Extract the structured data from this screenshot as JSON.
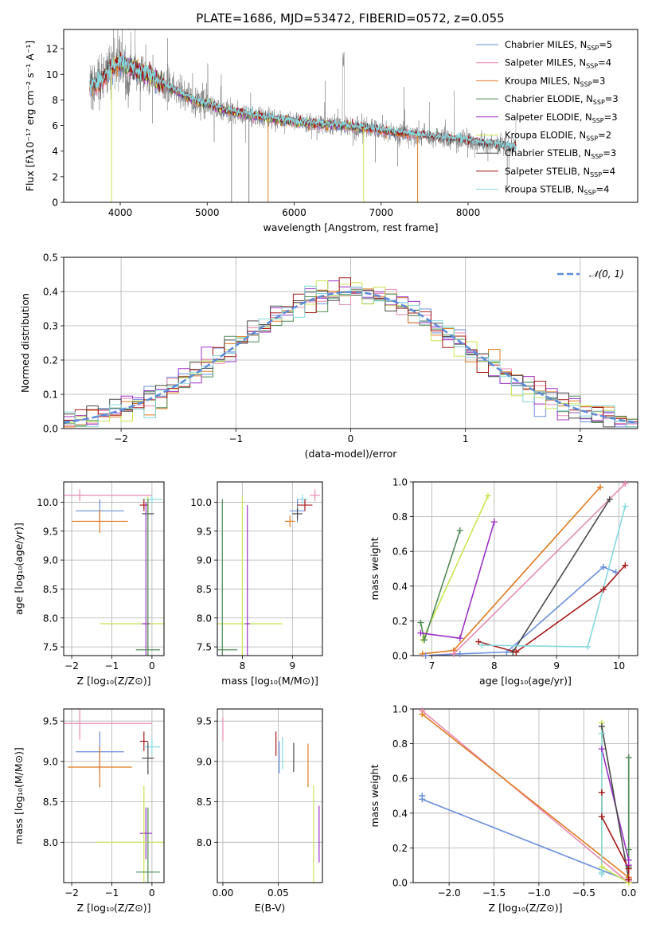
{
  "title": "PLATE=1686, MJD=53472, FIBERID=0572, z=0.055",
  "colors": {
    "Chabrier MILES": "#6a8fdb",
    "Salpeter MILES": "#e98ab5",
    "Kroupa MILES": "#e07a1f",
    "Chabrier ELODIE": "#4f8a55",
    "Salpeter ELODIE": "#9b33c7",
    "Kroupa ELODIE": "#c8e651",
    "Chabrier STELIB": "#4a4a4a",
    "Salpeter STELIB": "#a71818",
    "Kroupa STELIB": "#86d9df",
    "observed": "#808080",
    "normal": "#5b8bd9"
  },
  "chart_data": [
    {
      "id": "spectrum",
      "type": "line",
      "title": "PLATE=1686, MJD=53472, FIBERID=0572, z=0.055",
      "xlabel": "wavelength [Angstrom, rest frame]",
      "ylabel": "Flux [fλ10⁻¹⁷ erg cm⁻² s⁻¹ A⁻¹]",
      "xlim": [
        3350,
        9950
      ],
      "ylim": [
        0,
        13.5
      ],
      "xticks": [
        4000,
        5000,
        6000,
        7000,
        8000
      ],
      "yticks": [
        0,
        2,
        4,
        6,
        8,
        10,
        12
      ],
      "grid": false,
      "legend_position": "top-right",
      "continuum": [
        [
          3650,
          9.0
        ],
        [
          3800,
          9.6
        ],
        [
          3900,
          10.4
        ],
        [
          4000,
          10.9
        ],
        [
          4100,
          10.6
        ],
        [
          4300,
          10.0
        ],
        [
          4500,
          9.2
        ],
        [
          4700,
          8.5
        ],
        [
          4861,
          7.9
        ],
        [
          5000,
          7.7
        ],
        [
          5200,
          7.2
        ],
        [
          5500,
          6.8
        ],
        [
          5800,
          6.5
        ],
        [
          6000,
          6.3
        ],
        [
          6300,
          6.1
        ],
        [
          6563,
          6.0
        ],
        [
          6800,
          5.8
        ],
        [
          7000,
          5.6
        ],
        [
          7200,
          5.4
        ],
        [
          7400,
          5.25
        ],
        [
          7600,
          5.1
        ],
        [
          7800,
          4.95
        ],
        [
          8000,
          4.8
        ],
        [
          8200,
          4.6
        ],
        [
          8500,
          4.3
        ]
      ],
      "series": [
        {
          "name": "Chabrier MILES, Nₛₛₚ=5",
          "label": "Chabrier MILES, N",
          "nssp": "5",
          "model": "Chabrier MILES"
        },
        {
          "name": "Salpeter MILES, Nₛₛₚ=4",
          "label": "Salpeter MILES, N",
          "nssp": "4",
          "model": "Salpeter MILES"
        },
        {
          "name": "Kroupa MILES, Nₛₛₚ=3",
          "label": "Kroupa MILES, N",
          "nssp": "3",
          "model": "Kroupa MILES"
        },
        {
          "name": "Chabrier ELODIE, Nₛₛₚ=3",
          "label": "Chabrier ELODIE, N",
          "nssp": "3",
          "model": "Chabrier ELODIE"
        },
        {
          "name": "Salpeter ELODIE, Nₛₛₚ=3",
          "label": "Salpeter ELODIE, N",
          "nssp": "3",
          "model": "Salpeter ELODIE"
        },
        {
          "name": "Kroupa ELODIE, Nₛₛₚ=2",
          "label": "Kroupa ELODIE, N",
          "nssp": "2",
          "model": "Kroupa ELODIE"
        },
        {
          "name": "Chabrier STELIB, Nₛₛₚ=3",
          "label": "Chabrier STELIB, N",
          "nssp": "3",
          "model": "Chabrier STELIB"
        },
        {
          "name": "Salpeter STELIB, Nₛₛₚ=4",
          "label": "Salpeter STELIB, N",
          "nssp": "4",
          "model": "Salpeter STELIB"
        },
        {
          "name": "Kroupa STELIB, Nₛₛₚ=4",
          "label": "Kroupa STELIB, N",
          "nssp": "4",
          "model": "Kroupa STELIB"
        }
      ],
      "drop_lines": [
        {
          "model": "Kroupa ELODIE",
          "x": 3900
        },
        {
          "model": "Kroupa MILES",
          "x": 5700
        },
        {
          "model": "Kroupa ELODIE",
          "x": 6800
        },
        {
          "model": "Kroupa MILES",
          "x": 7420
        },
        {
          "model": "observed",
          "x": 5280
        },
        {
          "model": "observed",
          "x": 5480
        }
      ]
    },
    {
      "id": "residuals",
      "type": "histogram",
      "xlabel": "(data-model)/error",
      "ylabel": "Normed distribution",
      "xlim": [
        -2.5,
        2.5
      ],
      "ylim": [
        0,
        0.5
      ],
      "xticks": [
        -2,
        -1,
        0,
        1,
        2
      ],
      "yticks": [
        0.0,
        0.1,
        0.2,
        0.3,
        0.4,
        0.5
      ],
      "grid": true,
      "legend": "𝒩(0, 1)",
      "legend_position": "top-right",
      "bin_width": 0.1,
      "reference_curve": "normal(0,1)"
    },
    {
      "id": "age-vs-Z",
      "type": "errorbar",
      "xlabel": "Z [log₁₀(Z/Z⊙)]",
      "ylabel": "age  [log₁₀(age/yr)]",
      "xlim": [
        -2.2,
        0.3
      ],
      "ylim": [
        7.35,
        10.35
      ],
      "xticks": [
        -2,
        -1,
        0
      ],
      "yticks": [
        7.5,
        8.0,
        8.5,
        9.0,
        9.5,
        10.0
      ],
      "grid": true,
      "points": [
        {
          "model": "Salpeter MILES",
          "x": -1.8,
          "y": 10.12,
          "xerr": 1.8,
          "yerr": 0.1
        },
        {
          "model": "Chabrier MILES",
          "x": -1.3,
          "y": 9.85,
          "xerr": 0.6,
          "yerr": 0.2
        },
        {
          "model": "Kroupa MILES",
          "x": -1.3,
          "y": 9.67,
          "xerr": 0.7,
          "yerr": 0.2
        },
        {
          "model": "Kroupa STELIB",
          "x": 0.0,
          "y": 10.05,
          "xerr": 0.25,
          "yerr": 0.08
        },
        {
          "model": "Salpeter STELIB",
          "x": -0.2,
          "y": 9.95,
          "xerr": 0.1,
          "yerr": 0.1
        },
        {
          "model": "Chabrier STELIB",
          "x": -0.1,
          "y": 9.8,
          "xerr": 0.15,
          "yerr": 0.12
        },
        {
          "model": "Kroupa ELODIE",
          "x": -0.1,
          "y": 7.9,
          "xerr": 1.2,
          "yerr": 2.2
        },
        {
          "model": "Salpeter ELODIE",
          "x": -0.15,
          "y": 7.9,
          "xerr": 0.1,
          "yerr": 2.1
        },
        {
          "model": "Chabrier ELODIE",
          "x": -0.1,
          "y": 7.45,
          "xerr": 0.3,
          "yerr": 2.6
        }
      ]
    },
    {
      "id": "age-vs-mass",
      "type": "errorbar",
      "xlabel": "mass [log₁₀(M/M⊙)]",
      "xlim": [
        7.5,
        9.6
      ],
      "ylim": [
        7.35,
        10.35
      ],
      "xticks": [
        8,
        9
      ],
      "yticks": [
        7.5,
        8.0,
        8.5,
        9.0,
        9.5,
        10.0
      ],
      "grid": true,
      "points": [
        {
          "model": "Salpeter MILES",
          "x": 9.45,
          "y": 10.12,
          "xerr": 0.1,
          "yerr": 0.1
        },
        {
          "model": "Kroupa STELIB",
          "x": 9.2,
          "y": 10.05,
          "xerr": 0.1,
          "yerr": 0.08
        },
        {
          "model": "Chabrier MILES",
          "x": 9.1,
          "y": 9.85,
          "xerr": 0.15,
          "yerr": 0.2
        },
        {
          "model": "Salpeter STELIB",
          "x": 9.25,
          "y": 9.95,
          "xerr": 0.15,
          "yerr": 0.1
        },
        {
          "model": "Chabrier STELIB",
          "x": 9.1,
          "y": 9.8,
          "xerr": 0.1,
          "yerr": 0.1
        },
        {
          "model": "Kroupa MILES",
          "x": 8.95,
          "y": 9.67,
          "xerr": 0.1,
          "yerr": 0.1
        },
        {
          "model": "Kroupa ELODIE",
          "x": 8.0,
          "y": 7.9,
          "xerr": 0.8,
          "yerr": 2.2
        },
        {
          "model": "Salpeter ELODIE",
          "x": 8.1,
          "y": 7.9,
          "xerr": 0.05,
          "yerr": 2.05
        },
        {
          "model": "Chabrier ELODIE",
          "x": 7.6,
          "y": 7.45,
          "xerr": 0.3,
          "yerr": 2.6
        }
      ]
    },
    {
      "id": "massweight-vs-age",
      "type": "line",
      "xlabel": "age  [log₁₀(age/yr)]",
      "ylabel": "mass weight",
      "xlim": [
        6.7,
        10.3
      ],
      "ylim": [
        0,
        1.0
      ],
      "xticks": [
        7,
        8,
        9,
        10
      ],
      "yticks": [
        0.0,
        0.2,
        0.4,
        0.6,
        0.8,
        1.0
      ],
      "grid": true,
      "series": [
        {
          "model": "Kroupa ELODIE",
          "x": [
            6.85,
            7.9
          ],
          "y": [
            0.09,
            0.92
          ]
        },
        {
          "model": "Chabrier ELODIE",
          "x": [
            6.82,
            6.88,
            7.45
          ],
          "y": [
            0.19,
            0.09,
            0.72
          ]
        },
        {
          "model": "Salpeter ELODIE",
          "x": [
            6.82,
            7.45,
            8.0
          ],
          "y": [
            0.13,
            0.1,
            0.77
          ]
        },
        {
          "model": "Kroupa MILES",
          "x": [
            6.85,
            7.35,
            9.7
          ],
          "y": [
            0.01,
            0.03,
            0.97
          ]
        },
        {
          "model": "Salpeter MILES",
          "x": [
            6.9,
            7.35,
            10.1
          ],
          "y": [
            0.0,
            0.01,
            0.99
          ]
        },
        {
          "model": "Chabrier MILES",
          "x": [
            6.9,
            7.45,
            8.2,
            9.75,
            9.95
          ],
          "y": [
            0.0,
            0.01,
            0.02,
            0.51,
            0.48
          ]
        },
        {
          "model": "Chabrier STELIB",
          "x": [
            8.3,
            9.85
          ],
          "y": [
            0.02,
            0.9
          ]
        },
        {
          "model": "Salpeter STELIB",
          "x": [
            7.75,
            8.35,
            9.75,
            10.1
          ],
          "y": [
            0.08,
            0.02,
            0.38,
            0.52
          ]
        },
        {
          "model": "Kroupa STELIB",
          "x": [
            7.8,
            9.5,
            10.1
          ],
          "y": [
            0.06,
            0.05,
            0.86
          ]
        }
      ]
    },
    {
      "id": "mass-vs-Z",
      "type": "errorbar",
      "xlabel": "Z [log₁₀(Z/Z⊙)]",
      "ylabel": "mass [log₁₀(M/M⊙)]",
      "xlim": [
        -2.2,
        0.3
      ],
      "ylim": [
        7.5,
        9.65
      ],
      "xticks": [
        -2,
        -1,
        0
      ],
      "yticks": [
        8.0,
        8.5,
        9.0,
        9.5
      ],
      "grid": true,
      "points": [
        {
          "model": "Salpeter MILES",
          "x": -1.8,
          "y": 9.47,
          "xerr": 1.8,
          "yerr": 0.2
        },
        {
          "model": "Chabrier MILES",
          "x": -1.3,
          "y": 9.12,
          "xerr": 0.6,
          "yerr": 0.25
        },
        {
          "model": "Kroupa MILES",
          "x": -1.3,
          "y": 8.93,
          "xerr": 0.8,
          "yerr": 0.25
        },
        {
          "model": "Salpeter STELIB",
          "x": -0.2,
          "y": 9.25,
          "xerr": 0.1,
          "yerr": 0.12
        },
        {
          "model": "Kroupa STELIB",
          "x": 0.0,
          "y": 9.18,
          "xerr": 0.2,
          "yerr": 0.1
        },
        {
          "model": "Chabrier STELIB",
          "x": -0.1,
          "y": 9.04,
          "xerr": 0.15,
          "yerr": 0.2
        },
        {
          "model": "Salpeter ELODIE",
          "x": -0.15,
          "y": 8.11,
          "xerr": 0.15,
          "yerr": 0.32
        },
        {
          "model": "Kroupa ELODIE",
          "x": -0.2,
          "y": 8.0,
          "xerr": 1.2,
          "yerr": 0.7
        },
        {
          "model": "Chabrier ELODIE",
          "x": -0.1,
          "y": 7.63,
          "xerr": 0.3,
          "yerr": 0.8
        }
      ]
    },
    {
      "id": "mass-vs-EBV",
      "type": "errorbar",
      "xlabel": "E(B-V)",
      "xlim": [
        -0.005,
        0.09
      ],
      "ylim": [
        7.5,
        9.65
      ],
      "xticks": [
        0.0,
        0.05
      ],
      "yticks": [
        8.0,
        8.5,
        9.0,
        9.5
      ],
      "grid": true,
      "points": [
        {
          "model": "Salpeter MILES",
          "x": 0.0,
          "y": 9.4,
          "xerr": 0,
          "yerr": 0.15
        },
        {
          "model": "Salpeter STELIB",
          "x": 0.048,
          "y": 9.22,
          "xerr": 0,
          "yerr": 0.15
        },
        {
          "model": "Kroupa STELIB",
          "x": 0.054,
          "y": 9.1,
          "xerr": 0,
          "yerr": 0.2
        },
        {
          "model": "Chabrier MILES",
          "x": 0.051,
          "y": 9.05,
          "xerr": 0,
          "yerr": 0.2
        },
        {
          "model": "Chabrier STELIB",
          "x": 0.064,
          "y": 9.05,
          "xerr": 0,
          "yerr": 0.18
        },
        {
          "model": "Kroupa MILES",
          "x": 0.077,
          "y": 8.95,
          "xerr": 0,
          "yerr": 0.27
        },
        {
          "model": "Kroupa ELODIE",
          "x": 0.082,
          "y": 8.0,
          "xerr": 0,
          "yerr": 0.7
        },
        {
          "model": "Salpeter ELODIE",
          "x": 0.087,
          "y": 8.1,
          "xerr": 0,
          "yerr": 0.35
        }
      ]
    },
    {
      "id": "massweight-vs-Z",
      "type": "line",
      "xlabel": "Z [log₁₀(Z/Z⊙)]",
      "ylabel": "mass weight",
      "xlim": [
        -2.4,
        0.1
      ],
      "ylim": [
        0,
        1.0
      ],
      "xticks": [
        -2.0,
        -1.5,
        -1.0,
        -0.5,
        0.0
      ],
      "yticks": [
        0.0,
        0.2,
        0.4,
        0.6,
        0.8,
        1.0
      ],
      "grid": true,
      "series": [
        {
          "model": "Chabrier MILES",
          "x": [
            -2.3,
            -2.3,
            0.0,
            0.0
          ],
          "y": [
            0.5,
            0.48,
            0.01,
            0.0
          ]
        },
        {
          "model": "Salpeter MILES",
          "x": [
            -2.3,
            0.0,
            0.0
          ],
          "y": [
            0.99,
            0.0,
            0.01
          ]
        },
        {
          "model": "Kroupa MILES",
          "x": [
            -2.3,
            0.0,
            0.0
          ],
          "y": [
            0.97,
            0.03,
            0.0
          ]
        },
        {
          "model": "Kroupa ELODIE",
          "x": [
            -0.3,
            -0.3,
            0.0
          ],
          "y": [
            0.92,
            0.09,
            0.0
          ]
        },
        {
          "model": "Chabrier ELODIE",
          "x": [
            0.0,
            0.0,
            0.0
          ],
          "y": [
            0.72,
            0.19,
            0.09
          ]
        },
        {
          "model": "Salpeter ELODIE",
          "x": [
            -0.3,
            0.0,
            0.0
          ],
          "y": [
            0.77,
            0.13,
            0.1
          ]
        },
        {
          "model": "Chabrier STELIB",
          "x": [
            -0.3,
            0.0
          ],
          "y": [
            0.9,
            0.02
          ]
        },
        {
          "model": "Salpeter STELIB",
          "x": [
            -0.3,
            -0.3,
            0.0,
            0.0
          ],
          "y": [
            0.52,
            0.38,
            0.08,
            0.02
          ]
        },
        {
          "model": "Kroupa STELIB",
          "x": [
            -0.3,
            -0.3,
            -0.3
          ],
          "y": [
            0.86,
            0.06,
            0.05
          ]
        }
      ]
    }
  ]
}
